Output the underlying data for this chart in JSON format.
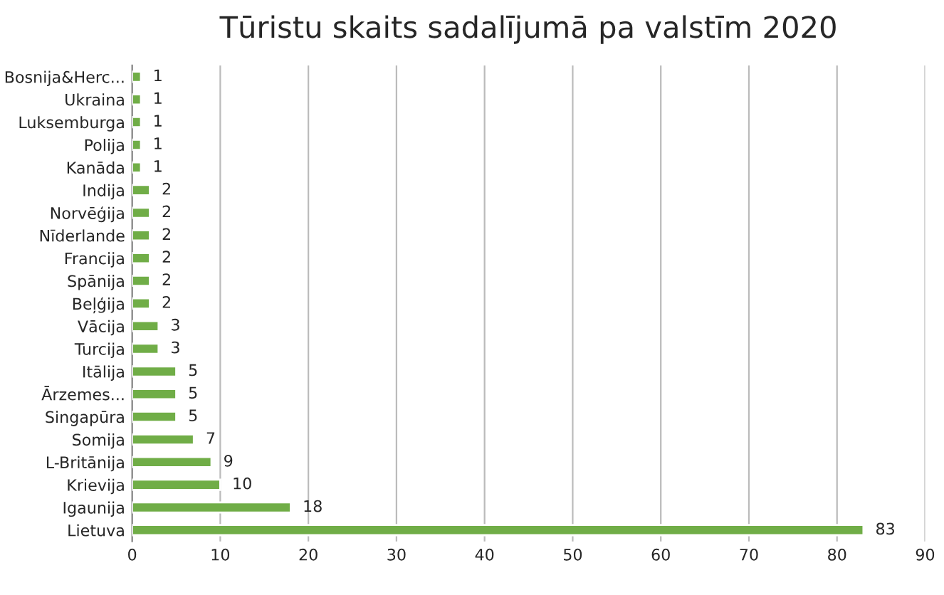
{
  "chart_data": {
    "type": "bar",
    "orientation": "horizontal",
    "title": "Tūristu skaits sadalījumā pa valstīm 2020",
    "categories": [
      "Bosnija&Herc...",
      "Ukraina",
      "Luksemburga",
      "Polija",
      "Kanāda",
      "Indija",
      "Norvēģija",
      "Nīderlande",
      "Francija",
      "Spānija",
      "Beļģija",
      "Vācija",
      "Turcija",
      "Itālija",
      "Ārzemes...",
      "Singapūra",
      "Somija",
      "L-Britānija",
      "Krievija",
      "Igaunija",
      "Lietuva"
    ],
    "values": [
      1,
      1,
      1,
      1,
      1,
      2,
      2,
      2,
      2,
      2,
      2,
      3,
      3,
      5,
      5,
      5,
      7,
      9,
      10,
      18,
      83
    ],
    "color": "#70ad47",
    "xlim": [
      0,
      90
    ],
    "xticks": [
      0,
      10,
      20,
      30,
      40,
      50,
      60,
      70,
      80,
      90
    ],
    "grid": "x",
    "data_labels": true,
    "legend": false
  }
}
